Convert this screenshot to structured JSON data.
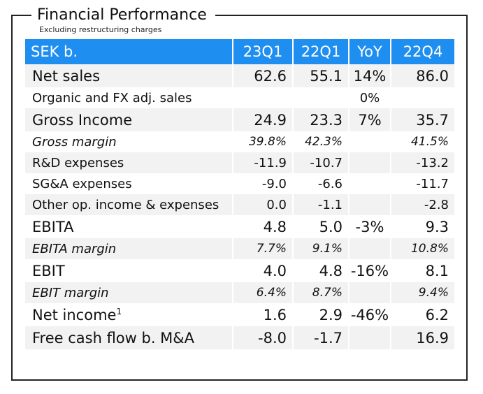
{
  "title": "Financial Performance",
  "subtitle": "Excluding restructuring charges",
  "header": {
    "label": "SEK b.",
    "cols": [
      "23Q1",
      "22Q1",
      "YoY",
      "22Q4"
    ]
  },
  "rows": [
    {
      "label": "Net sales",
      "sup": "",
      "v": [
        "62.6",
        "55.1",
        "14%",
        "86.0"
      ]
    },
    {
      "label": "Organic and FX adj. sales",
      "sup": "",
      "v": [
        "",
        "",
        "0%",
        ""
      ]
    },
    {
      "label": "Gross Income",
      "sup": "",
      "v": [
        "24.9",
        "23.3",
        "7%",
        "35.7"
      ]
    },
    {
      "label": "Gross margin",
      "sup": "",
      "v": [
        "39.8%",
        "42.3%",
        "",
        "41.5%"
      ]
    },
    {
      "label": "R&D expenses",
      "sup": "",
      "v": [
        "-11.9",
        "-10.7",
        "",
        "-13.2"
      ]
    },
    {
      "label": "SG&A expenses",
      "sup": "",
      "v": [
        "-9.0",
        "-6.6",
        "",
        "-11.7"
      ]
    },
    {
      "label": "Other op. income & expenses",
      "sup": "",
      "v": [
        "0.0",
        "-1.1",
        "",
        "-2.8"
      ]
    },
    {
      "label": "EBITA",
      "sup": "",
      "v": [
        "4.8",
        "5.0",
        "-3%",
        "9.3"
      ]
    },
    {
      "label": "EBITA margin",
      "sup": "",
      "v": [
        "7.7%",
        "9.1%",
        "",
        "10.8%"
      ]
    },
    {
      "label": "EBIT",
      "sup": "",
      "v": [
        "4.0",
        "4.8",
        "-16%",
        "8.1"
      ]
    },
    {
      "label": "EBIT margin",
      "sup": "",
      "v": [
        "6.4%",
        "8.7%",
        "",
        "9.4%"
      ]
    },
    {
      "label": "Net income",
      "sup": "1",
      "v": [
        "1.6",
        "2.9",
        "-46%",
        "6.2"
      ]
    },
    {
      "label": "Free cash flow b. M&A",
      "sup": "",
      "v": [
        "-8.0",
        "-1.7",
        "",
        "16.9"
      ]
    }
  ]
}
